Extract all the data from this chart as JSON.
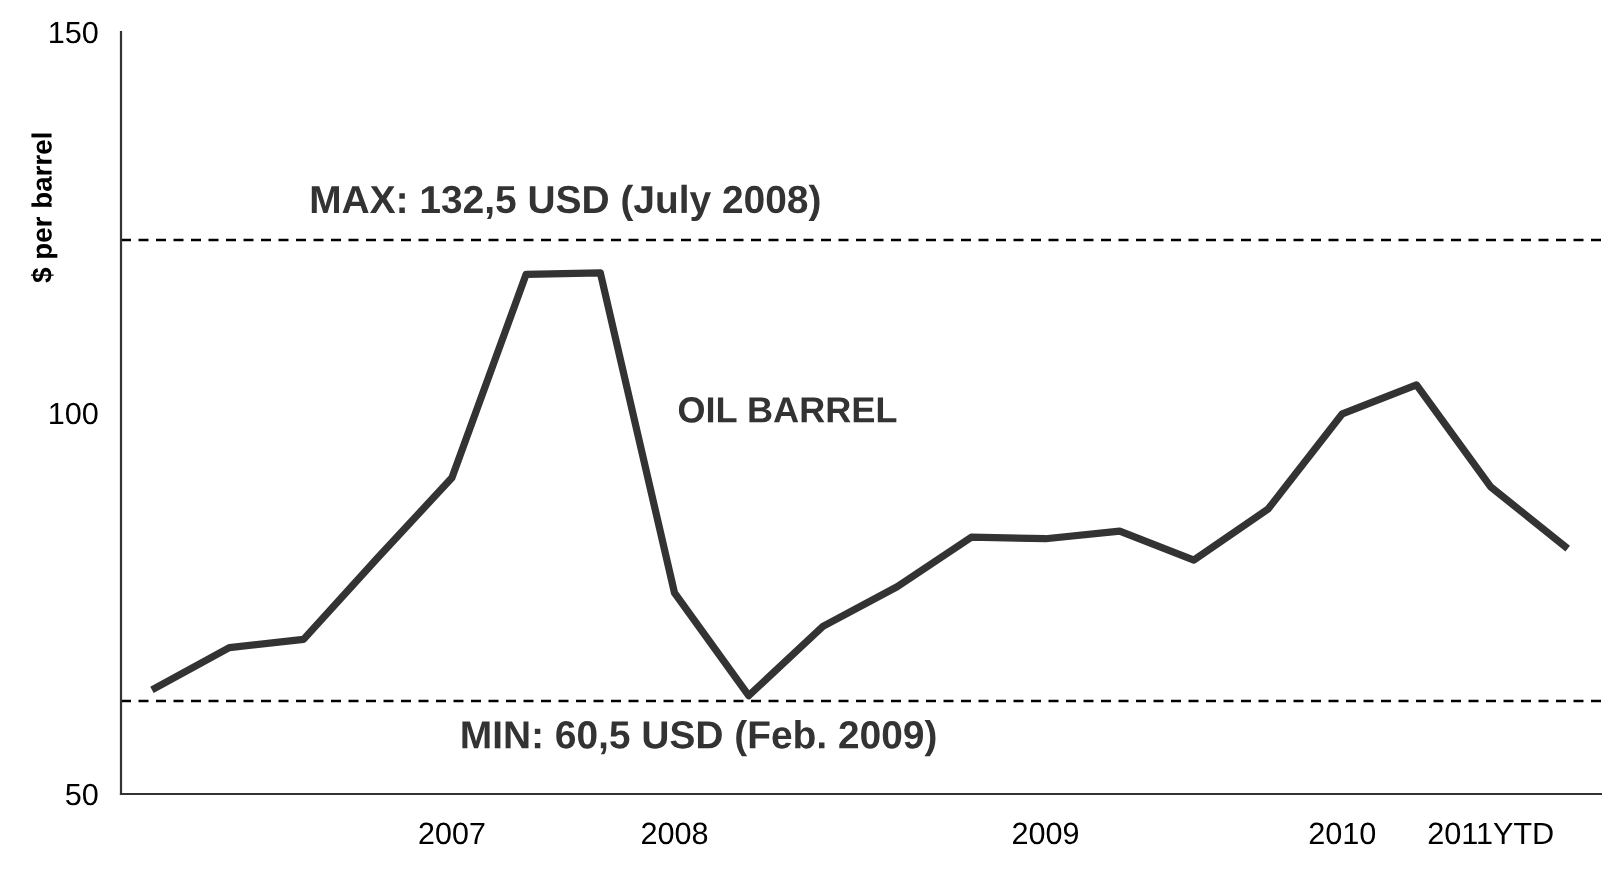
{
  "chart_data": {
    "type": "line",
    "title": "OIL BARREL",
    "ylabel": "$ per barrel",
    "categories": [
      null,
      null,
      null,
      null,
      "2007",
      null,
      null,
      "2008",
      null,
      null,
      null,
      null,
      "2009",
      null,
      null,
      null,
      "2010",
      null,
      "2011YTD",
      null
    ],
    "series": [
      {
        "color": "#333333",
        "values": [
          63.9,
          69.2,
          70.3,
          81.0,
          91.5,
          118.2,
          118.4,
          76.4,
          62.9,
          72.0,
          77.2,
          83.7,
          83.5,
          84.5,
          80.7,
          87.4,
          99.9,
          103.7,
          90.3,
          82.5
        ]
      }
    ],
    "ylim": [
      50,
      150
    ],
    "yticks": [
      50,
      100,
      150
    ],
    "ref_lines": [
      {
        "axis": "y",
        "value": 122.7,
        "line_style": "dashed",
        "color": "#000000"
      },
      {
        "axis": "y",
        "value": 62.2,
        "line_style": "dashed",
        "color": "#000000"
      }
    ],
    "annotations": [
      "MAX: 132,5 USD (July 2008)",
      "MIN: 60,5 USD (Feb. 2009)"
    ],
    "grid": false,
    "legend": false,
    "marker": "none",
    "line_style": "solid"
  }
}
